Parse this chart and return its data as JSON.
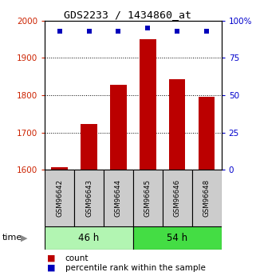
{
  "title": "GDS2233 / 1434860_at",
  "samples": [
    "GSM96642",
    "GSM96643",
    "GSM96644",
    "GSM96645",
    "GSM96646",
    "GSM96648"
  ],
  "counts": [
    1607,
    1722,
    1828,
    1951,
    1843,
    1795
  ],
  "percentile_ranks": [
    93,
    93,
    93,
    95,
    93,
    93
  ],
  "group_46h_color": "#b2f5b2",
  "group_54h_color": "#44dd44",
  "bar_color": "#bb0000",
  "dot_color": "#0000bb",
  "ylim_left": [
    1600,
    2000
  ],
  "ylim_right": [
    0,
    100
  ],
  "yticks_left": [
    1600,
    1700,
    1800,
    1900,
    2000
  ],
  "yticks_right": [
    0,
    25,
    50,
    75,
    100
  ],
  "ytick_labels_right": [
    "0",
    "25",
    "50",
    "75",
    "100%"
  ],
  "left_axis_color": "#cc2200",
  "right_axis_color": "#0000cc",
  "sample_box_color": "#cccccc",
  "legend_count_label": "count",
  "legend_pct_label": "percentile rank within the sample"
}
